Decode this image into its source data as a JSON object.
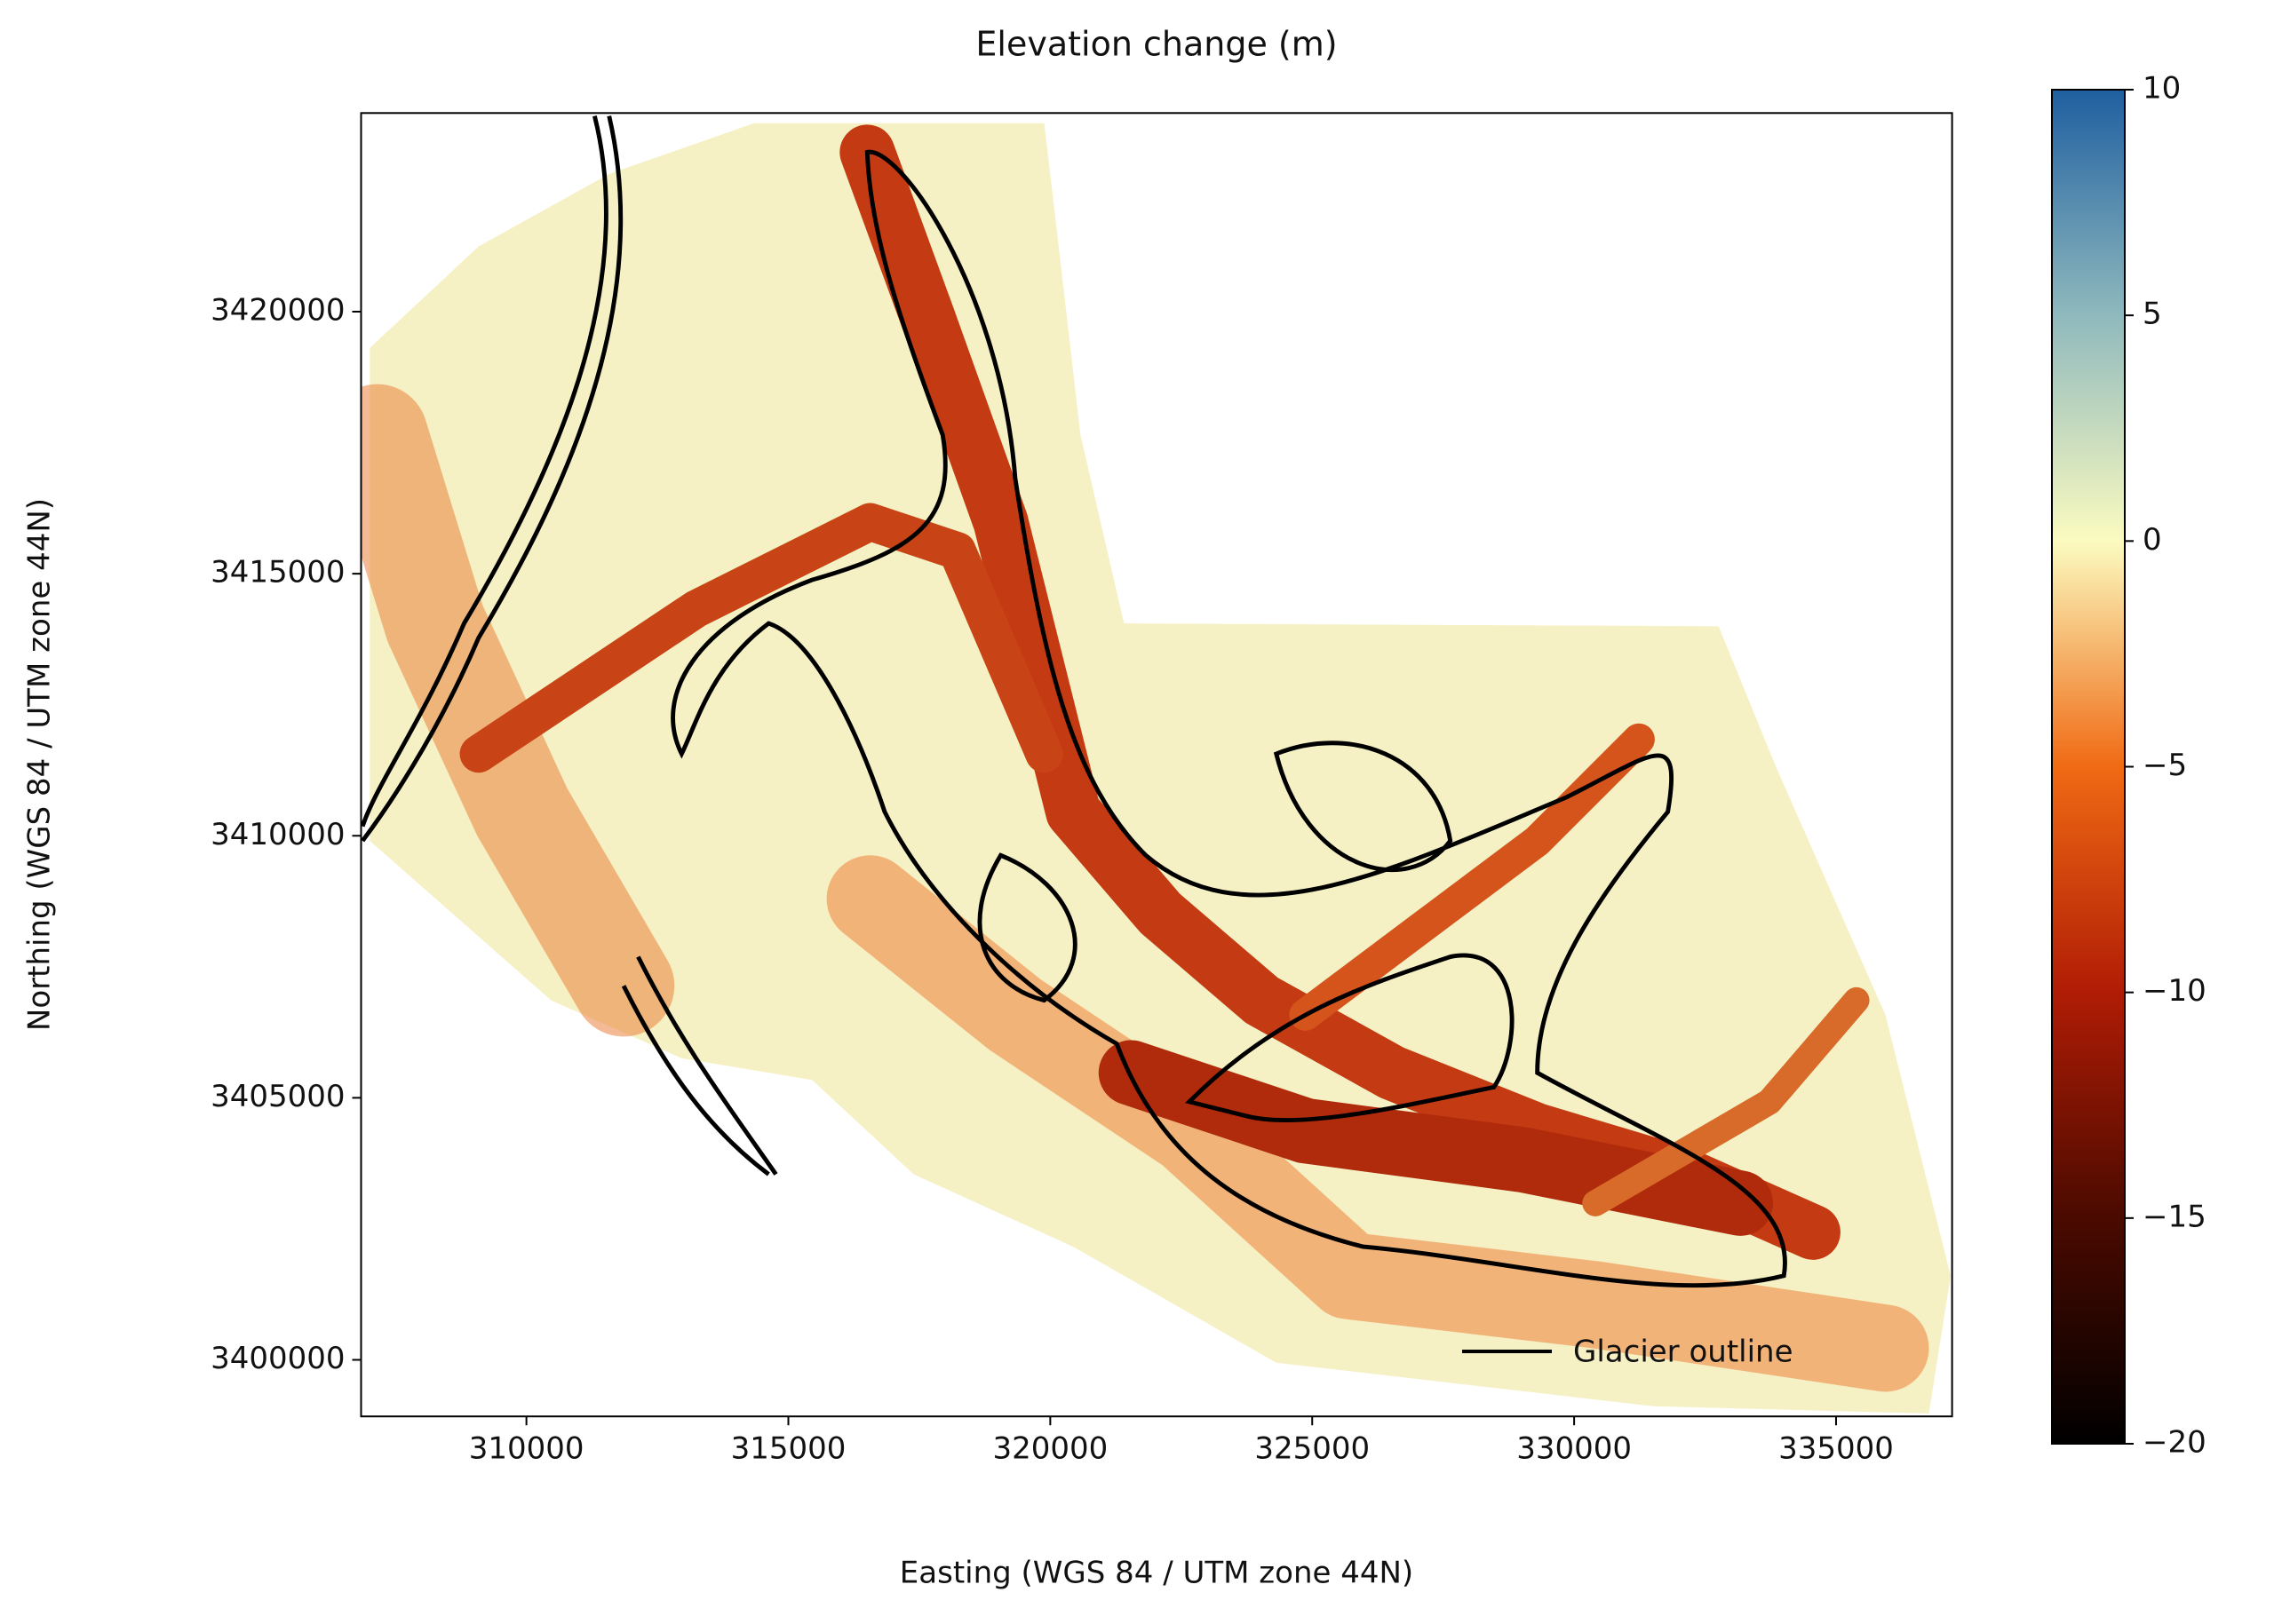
{
  "chart_data": {
    "type": "raster",
    "title": "Elevation change (m)",
    "xlabel": "Easting (WGS 84 / UTM zone 44N)",
    "ylabel": "Northing (WGS 84 / UTM zone 44N)",
    "xlim": [
      306844,
      337215
    ],
    "ylim": [
      3398921,
      3423790
    ],
    "xticks": [
      310000,
      315000,
      320000,
      325000,
      330000,
      335000
    ],
    "yticks": [
      3400000,
      3405000,
      3410000,
      3415000,
      3420000
    ],
    "colorbar": {
      "clim": [
        -20,
        10
      ],
      "ticks": [
        {
          "value": -20,
          "label": "−20"
        },
        {
          "value": -15,
          "label": "−15"
        },
        {
          "value": -10,
          "label": "−10"
        },
        {
          "value": -5,
          "label": "−5"
        },
        0,
        5,
        10
      ],
      "colormap": [
        "#000000",
        "#4a0a00",
        "#b01c05",
        "#f06a14",
        "#fbfbc0",
        "#8fb9bd",
        "#1f5fa0"
      ]
    },
    "legend": {
      "label": "Glacier outline",
      "color": "#000000",
      "location": "lower right"
    }
  }
}
